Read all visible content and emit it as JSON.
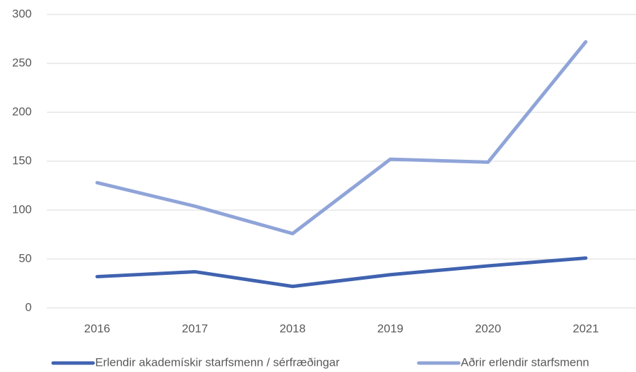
{
  "chart_data": {
    "type": "line",
    "categories": [
      "2016",
      "2017",
      "2018",
      "2019",
      "2020",
      "2021"
    ],
    "series": [
      {
        "name": "Erlendir akademískir starfsmenn / sérfræðingar",
        "color": "#4063b0",
        "values": [
          32,
          37,
          22,
          34,
          43,
          51
        ]
      },
      {
        "name": "Aðrir erlendir starfsmenn",
        "color": "#8fa4d8",
        "values": [
          128,
          104,
          76,
          152,
          149,
          272
        ]
      }
    ],
    "ylim": [
      0,
      300
    ],
    "yticks": [
      0,
      50,
      100,
      150,
      200,
      250,
      300
    ],
    "grid": true,
    "legend": "bottom"
  }
}
